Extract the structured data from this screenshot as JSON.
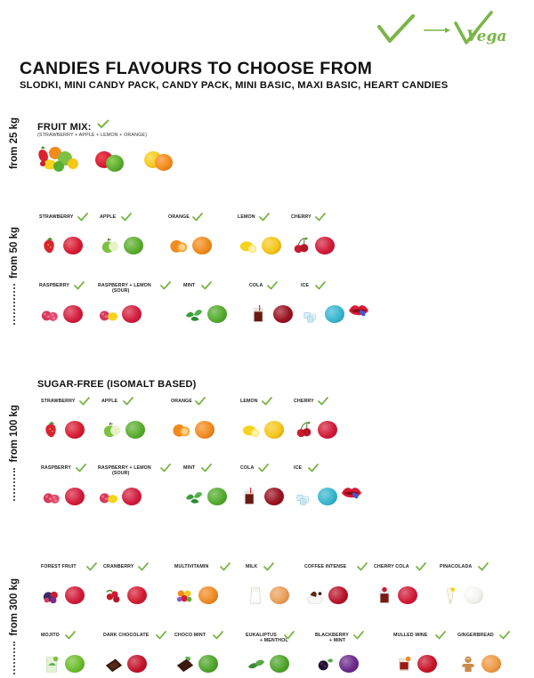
{
  "vegan_logo": {
    "text": "Vegan",
    "color": "#7ab547"
  },
  "title": "CANDIES FLAVOURS TO CHOOSE FROM",
  "subtitle": "SLODKI, MINI CANDY PACK, CANDY PACK, MINI BASIC, MAXI BASIC, HEART CANDIES",
  "check_color": "#7ab547",
  "sections": {
    "s25": {
      "label": "from 25 kg",
      "heading": "FRUIT MIX:",
      "sub": "(STRAWBERRY + APPLE + LEMON + ORANGE)"
    },
    "s50": {
      "label": "from 50 kg",
      "items": [
        {
          "name": "STRAWBERRY",
          "fruit": "strawberry",
          "color": "#d81b33"
        },
        {
          "name": "APPLE",
          "fruit": "apple",
          "color": "#5aae2e"
        },
        {
          "name": "ORANGE",
          "fruit": "orange",
          "color": "#f28a1c"
        },
        {
          "name": "LEMON",
          "fruit": "lemon",
          "color": "#f6c619"
        },
        {
          "name": "CHERRY",
          "fruit": "cherry",
          "color": "#d11a38"
        },
        {
          "name": "RASPBERRY",
          "fruit": "raspberry",
          "color": "#d41b3c"
        },
        {
          "name": "RASPBERRY + LEMON",
          "name2": "(SOUR)",
          "fruit": "raspberry-lemon",
          "color": "#d41b3c"
        },
        {
          "name": "MINT",
          "fruit": "mint",
          "color": "#52ab2d"
        },
        {
          "name": "COLA",
          "fruit": "cola",
          "color": "#9a1220"
        },
        {
          "name": "ICE",
          "fruit": "ice",
          "color": "#37b6cf"
        }
      ]
    },
    "s100": {
      "label": "from 100 kg",
      "heading": "SUGAR-FREE (ISOMALT BASED)",
      "items": [
        {
          "name": "STRAWBERRY",
          "fruit": "strawberry",
          "color": "#d81b33"
        },
        {
          "name": "APPLE",
          "fruit": "apple",
          "color": "#5aae2e"
        },
        {
          "name": "ORANGE",
          "fruit": "orange",
          "color": "#f28a1c"
        },
        {
          "name": "LEMON",
          "fruit": "lemon",
          "color": "#f6c619"
        },
        {
          "name": "CHERRY",
          "fruit": "cherry",
          "color": "#d11a38"
        },
        {
          "name": "RASPBERRY",
          "fruit": "raspberry",
          "color": "#d41b3c"
        },
        {
          "name": "RASPBERRY + LEMON",
          "name2": "(SOUR)",
          "fruit": "raspberry-lemon",
          "color": "#d41b3c"
        },
        {
          "name": "MINT",
          "fruit": "mint",
          "color": "#52ab2d"
        },
        {
          "name": "COLA",
          "fruit": "cola",
          "color": "#9a1220"
        },
        {
          "name": "ICE",
          "fruit": "ice",
          "color": "#37b6cf"
        }
      ]
    },
    "s300": {
      "label": "from 300 kg",
      "items": [
        {
          "name": "FOREST FRUIT",
          "fruit": "forest-fruit",
          "color": "#d11a38"
        },
        {
          "name": "CRANBERRY",
          "fruit": "cranberry",
          "color": "#d41b33"
        },
        {
          "name": "MULTIVITAMIN",
          "fruit": "multivitamin",
          "color": "#f08a24"
        },
        {
          "name": "MILK",
          "fruit": "milk",
          "color": "#eaa05a"
        },
        {
          "name": "COFFEE INTENSE",
          "fruit": "coffee",
          "color": "#b8142a"
        },
        {
          "name": "CHERRY COLA",
          "fruit": "cherry-cola",
          "color": "#d11a38"
        },
        {
          "name": "PINACOLADA",
          "fruit": "pinacolada",
          "color": "#f2f2ee"
        },
        {
          "name": "MOJITO",
          "fruit": "mojito",
          "color": "#6bbd2d"
        },
        {
          "name": "DARK CHOCOLATE",
          "fruit": "dark-chocolate",
          "color": "#c4122a"
        },
        {
          "name": "CHOCO MINT",
          "fruit": "choco-mint",
          "color": "#4fa52b"
        },
        {
          "name": "EUKALIPTUS",
          "name2": "+ MENTHOL",
          "fruit": "eucalyptus",
          "color": "#4fa52b"
        },
        {
          "name": "BLACKBERRY",
          "name2": "+ MINT",
          "fruit": "blackberry",
          "color": "#6b2a8a"
        },
        {
          "name": "MULLED WINE",
          "fruit": "mulled-wine",
          "color": "#c8142a"
        },
        {
          "name": "GINGERBREAD",
          "fruit": "gingerbread",
          "color": "#ee9a44"
        }
      ]
    }
  }
}
